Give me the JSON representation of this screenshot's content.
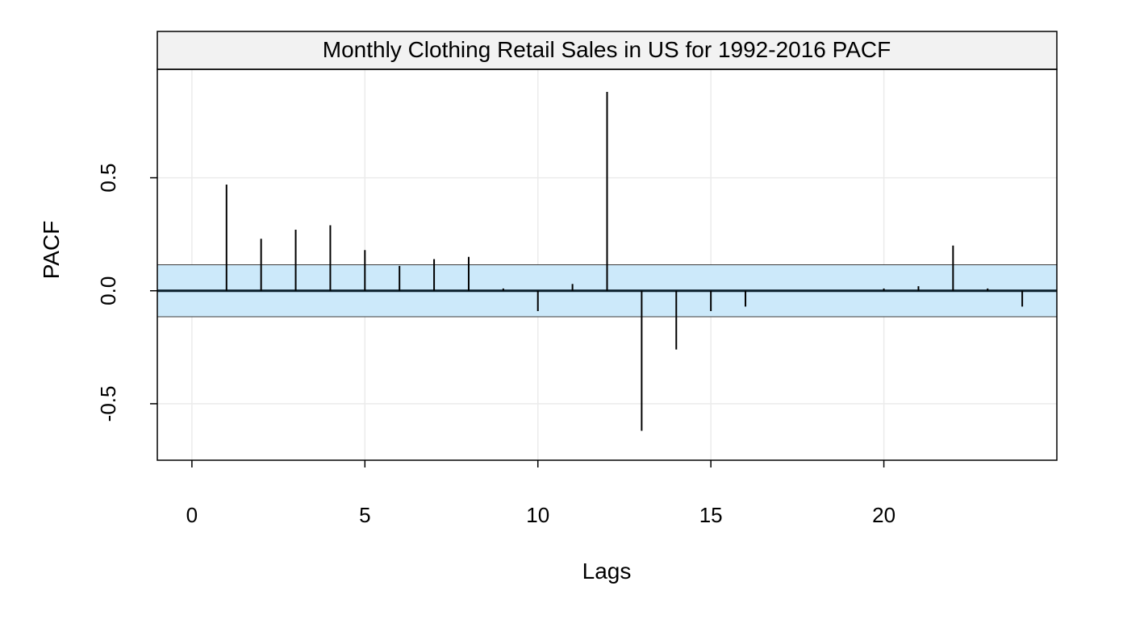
{
  "chart_data": {
    "type": "bar",
    "title": "Monthly Clothing Retail Sales in US for 1992-2016 PACF",
    "xlabel": "Lags",
    "ylabel": "PACF",
    "xlim": [
      -1,
      25
    ],
    "ylim": [
      -0.75,
      0.98
    ],
    "x_ticks": [
      0,
      5,
      10,
      15,
      20
    ],
    "y_ticks": [
      -0.5,
      0.0,
      0.5
    ],
    "y_tick_labels": [
      "-0.5",
      "0.0",
      "0.5"
    ],
    "grid": true,
    "confidence_band": [
      -0.115,
      0.115
    ],
    "colors": {
      "band_fill": "#cce9fa",
      "band_edge": "#3a3a3a",
      "bar": "#000000",
      "grid": "#ebebeb",
      "strip": "#f2f2f2"
    },
    "series": [
      {
        "x": [
          1,
          2,
          3,
          4,
          5,
          6,
          7,
          8,
          9,
          10,
          11,
          12,
          13,
          14,
          15,
          16,
          17,
          18,
          19,
          20,
          21,
          22,
          23,
          24
        ],
        "values": [
          0.47,
          0.23,
          0.27,
          0.29,
          0.18,
          0.11,
          0.14,
          0.15,
          0.01,
          -0.09,
          0.03,
          0.88,
          -0.62,
          -0.26,
          -0.09,
          -0.07,
          0.0,
          0.0,
          0.0,
          0.01,
          0.02,
          0.2,
          0.01,
          -0.07
        ]
      }
    ]
  }
}
